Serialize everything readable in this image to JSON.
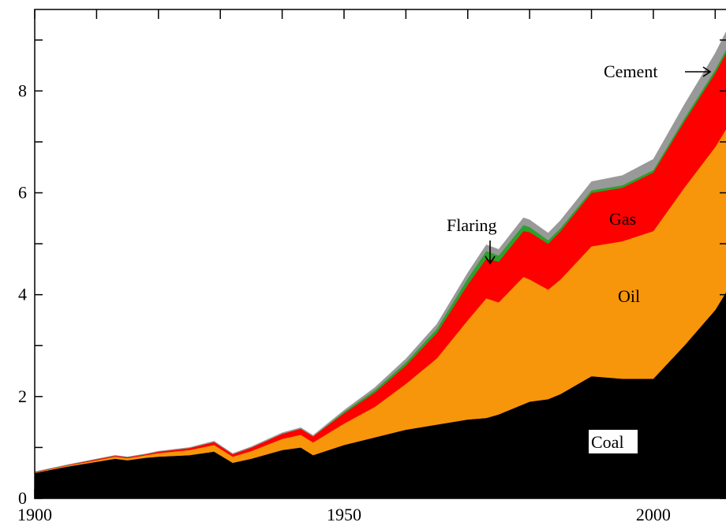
{
  "chart_data": {
    "type": "area",
    "stacked": true,
    "title": "",
    "xlabel": "",
    "ylabel": "",
    "xlim": [
      1900,
      2012
    ],
    "ylim": [
      0,
      9.6
    ],
    "x_ticks": [
      1900,
      1950,
      2000
    ],
    "y_ticks": [
      0,
      2,
      4,
      6,
      8
    ],
    "grid": false,
    "legend": "none",
    "x": [
      1900,
      1905,
      1910,
      1913,
      1915,
      1918,
      1920,
      1925,
      1929,
      1932,
      1935,
      1940,
      1943,
      1945,
      1950,
      1955,
      1960,
      1965,
      1970,
      1973,
      1975,
      1979,
      1980,
      1983,
      1985,
      1990,
      1995,
      2000,
      2005,
      2010,
      2012
    ],
    "series": [
      {
        "name": "Coal",
        "color": "#000000",
        "values": [
          0.5,
          0.62,
          0.72,
          0.78,
          0.75,
          0.8,
          0.82,
          0.85,
          0.92,
          0.7,
          0.78,
          0.95,
          1.0,
          0.85,
          1.05,
          1.2,
          1.35,
          1.45,
          1.55,
          1.58,
          1.65,
          1.85,
          1.9,
          1.95,
          2.05,
          2.4,
          2.35,
          2.35,
          3.0,
          3.7,
          4.1
        ]
      },
      {
        "name": "Oil",
        "color": "#f7960a",
        "values": [
          0.01,
          0.02,
          0.03,
          0.04,
          0.04,
          0.05,
          0.07,
          0.1,
          0.13,
          0.12,
          0.15,
          0.22,
          0.25,
          0.25,
          0.42,
          0.6,
          0.9,
          1.3,
          1.95,
          2.35,
          2.2,
          2.5,
          2.4,
          2.15,
          2.25,
          2.55,
          2.7,
          2.9,
          3.1,
          3.2,
          3.2
        ]
      },
      {
        "name": "Gas",
        "color": "#ff0000",
        "values": [
          0.01,
          0.01,
          0.02,
          0.02,
          0.02,
          0.02,
          0.03,
          0.04,
          0.06,
          0.05,
          0.07,
          0.1,
          0.12,
          0.12,
          0.2,
          0.28,
          0.36,
          0.5,
          0.7,
          0.78,
          0.8,
          0.9,
          0.93,
          0.9,
          0.95,
          1.05,
          1.05,
          1.15,
          1.3,
          1.45,
          1.5
        ]
      },
      {
        "name": "Flaring",
        "color": "#2ca02c",
        "values": [
          0,
          0,
          0,
          0,
          0,
          0,
          0,
          0,
          0,
          0,
          0,
          0,
          0,
          0,
          0.03,
          0.05,
          0.06,
          0.08,
          0.12,
          0.15,
          0.12,
          0.12,
          0.1,
          0.07,
          0.06,
          0.05,
          0.05,
          0.05,
          0.06,
          0.07,
          0.07
        ]
      },
      {
        "name": "Cement",
        "color": "#999999",
        "values": [
          0.003,
          0.004,
          0.005,
          0.006,
          0.006,
          0.006,
          0.007,
          0.01,
          0.015,
          0.012,
          0.015,
          0.02,
          0.02,
          0.02,
          0.03,
          0.05,
          0.07,
          0.09,
          0.11,
          0.12,
          0.12,
          0.14,
          0.14,
          0.14,
          0.15,
          0.17,
          0.19,
          0.21,
          0.27,
          0.32,
          0.35
        ]
      }
    ],
    "annotations": [
      {
        "text": "Cement",
        "target": "Cement"
      },
      {
        "text": "Flaring",
        "target": "Flaring"
      },
      {
        "text": "Gas",
        "target": "Gas"
      },
      {
        "text": "Oil",
        "target": "Oil"
      },
      {
        "text": "Coal",
        "target": "Coal"
      }
    ]
  }
}
